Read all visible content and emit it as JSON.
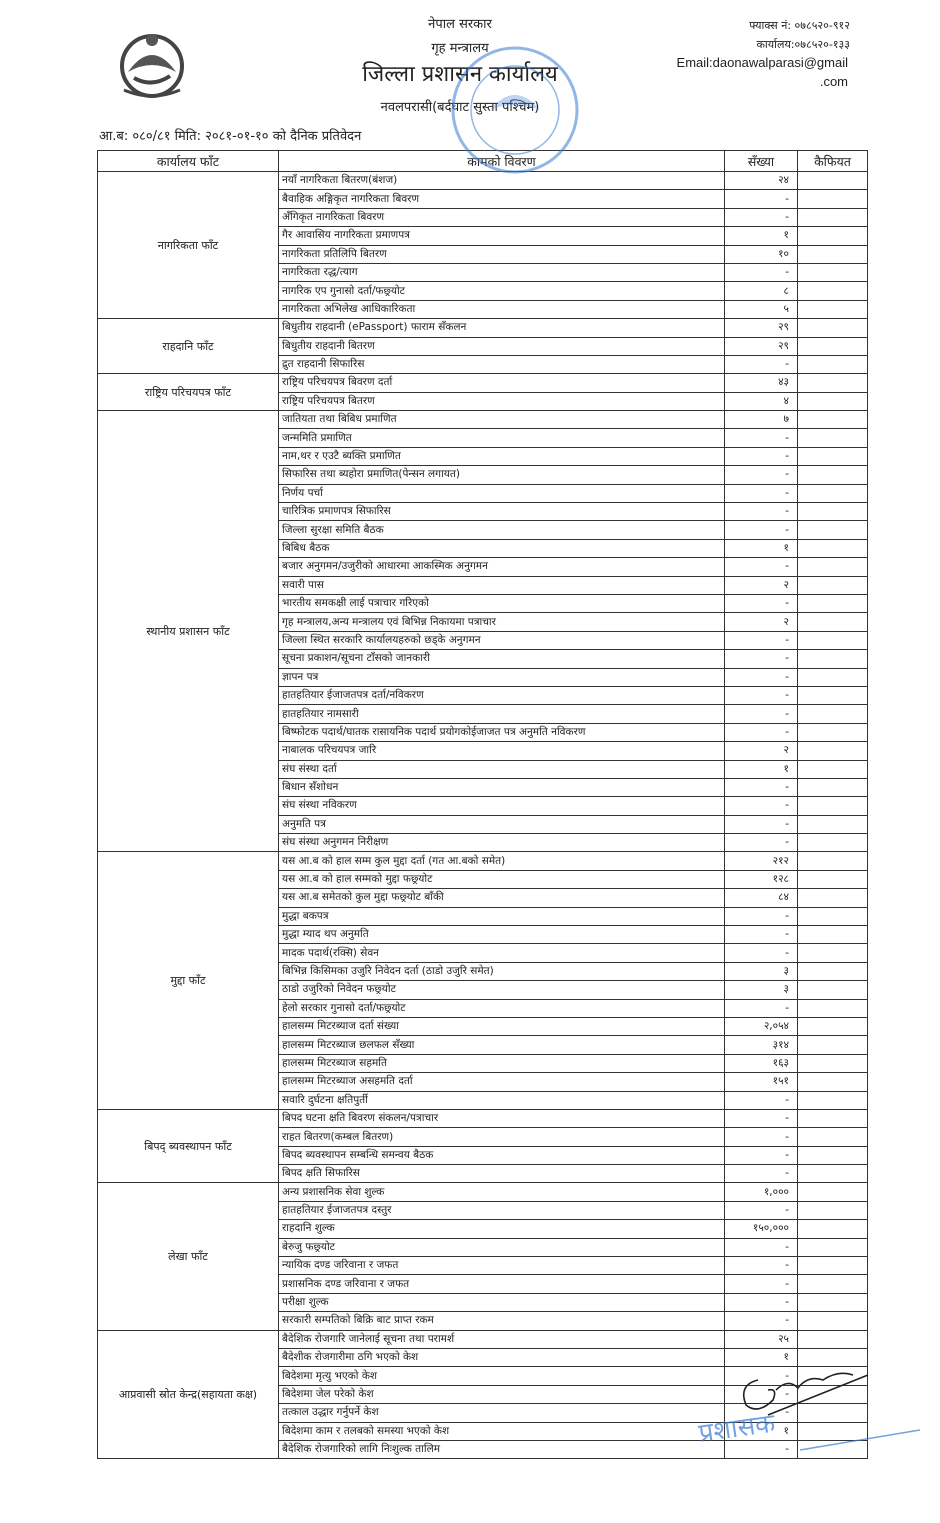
{
  "header": {
    "government": "नेपाल सरकार",
    "ministry": "गृह मन्त्रालय",
    "office": "जिल्ला प्रशासन कार्यालय",
    "district": "नवलपरासी(बर्दघाट सुस्ता पश्चिम)",
    "fax": "फ्याक्स नं: ०७८५२०-९१२",
    "phone": "कार्यालय:०७८५२०-१३३",
    "email_line1": "Email:daonawalparasi@gmail",
    "email_line2": ".com",
    "report_title": "आ.ब: ०८०/८१ मिति: २०८१-०१-१० को दैनिक प्रतिवेदन"
  },
  "table": {
    "columns": [
      "कार्यालय फाँट",
      "कामको विवरण",
      "सँख्या",
      "कैफियत"
    ],
    "sections": [
      {
        "name": "नागरिकता फाँट",
        "rows": [
          [
            "नयाँ नागरिकता बितरण(बंशज)",
            "२४"
          ],
          [
            "बैवाहिक अङ्गिकृत नागरिकता बिवरण",
            "-"
          ],
          [
            "अँगिकृत नागरिकता बिवरण",
            "-"
          ],
          [
            "गैर आवासिय नागरिकता प्रमाणपत्र",
            "१"
          ],
          [
            "नागरिकता प्रतिलिपि बितरण",
            "१०"
          ],
          [
            "नागरिकता रद्ध/त्याग",
            "-"
          ],
          [
            "नागरिक एप गुनासो दर्ता/फछ्र्योट",
            "८"
          ],
          [
            "नागरिकता अभिलेख आधिकारिकता",
            "५"
          ]
        ]
      },
      {
        "name": "राहदानि फाँट",
        "rows": [
          [
            "बिधुतीय राहदानी (ePassport) फाराम सँकलन",
            "२९"
          ],
          [
            "बिधुतीय राहदानी बितरण",
            "२९"
          ],
          [
            "द्रुत राहदानी सिफारिस",
            "-"
          ]
        ]
      },
      {
        "name": "राष्ट्रिय परिचयपत्र फाँट",
        "rows": [
          [
            "राष्ट्रिय परिचयपत्र बिवरण दर्ता",
            "४३"
          ],
          [
            "राष्ट्रिय परिचयपत्र बितरण",
            "४"
          ]
        ]
      },
      {
        "name": "स्थानीय प्रशासन फाँट",
        "rows": [
          [
            "जातियता तथा बिबिध प्रमाणित",
            "७"
          ],
          [
            "जन्ममिति प्रमाणित",
            "-"
          ],
          [
            "नाम,थर र एउटै ब्यक्ति प्रमाणित",
            "-"
          ],
          [
            "सिफारिस तथा ब्यहोरा प्रमाणित(पेन्सन लगायत)",
            "-"
          ],
          [
            "निर्णय पर्चा",
            "-"
          ],
          [
            "चारित्रिक प्रमाणपत्र सिफारिस",
            "-"
          ],
          [
            "जिल्ला सुरक्षा समिति बैठक",
            "-"
          ],
          [
            "बिबिध बैठक",
            "१"
          ],
          [
            "बजार अनुगमन/उजुरीको आधारमा आकस्मिक अनुगमन",
            "-"
          ],
          [
            "सवारी पास",
            "२"
          ],
          [
            "भारतीय समकक्षी लाई पत्राचार गरिएको",
            "-"
          ],
          [
            "गृह मन्त्रालय,अन्य मन्त्रालय एवं बिभिन्न निकायमा पत्राचार",
            "२"
          ],
          [
            "जिल्ला स्थित सरकारि कार्यालयहरुको छड्के अनुगमन",
            "-"
          ],
          [
            "सूचना प्रकाशन/सूचना टाँसको जानकारी",
            "-"
          ],
          [
            "ज्ञापन पत्र",
            "-"
          ],
          [
            "हातहतियार ईजाजतपत्र दर्ता/नविकरण",
            "-"
          ],
          [
            "हातहतियार नामसारी",
            "-"
          ],
          [
            "बिष्फोटक पदार्थ/घातक रासायनिक पदार्थ प्रयोगकोईजाजत पत्र अनुमति नविकरण",
            "-"
          ],
          [
            "नाबालक परिचयपत्र जारि",
            "२"
          ],
          [
            "संघ संस्था दर्ता",
            "१"
          ],
          [
            "बिधान सँशोधन",
            "-"
          ],
          [
            "संघ संस्था नविकरण",
            "-"
          ],
          [
            "अनुमति पत्र",
            "-"
          ],
          [
            "संघ संस्था अनुगमन निरीक्षण",
            "-"
          ]
        ]
      },
      {
        "name": "मुद्दा फाँट",
        "rows": [
          [
            "यस आ.ब को हाल सम्म कुल मुद्दा दर्ता (गत आ.बको समेत)",
            "२१२"
          ],
          [
            "यस आ.ब को हाल सम्मको मुद्दा फछ्र्योट",
            "१२८"
          ],
          [
            "यस आ.ब समेतको कुल मुद्दा फछ्र्योट बाँकी",
            "८४"
          ],
          [
            "मुद्धा बकपत्र",
            "-"
          ],
          [
            "मुद्धा म्याद थप अनुमति",
            "-"
          ],
          [
            "मादक पदार्थ(रक्सि) सेवन",
            "-"
          ],
          [
            "बिभिन्न किसिमका उजुरि निवेदन दर्ता (ठाडो उजुरि समेत)",
            "३"
          ],
          [
            "ठाडो उजुरिको निवेदन फछ्र्योट",
            "३"
          ],
          [
            "हेलो सरकार गुनासो दर्ता/फछ्र्योट",
            "-"
          ],
          [
            "हालसम्म मिटरब्याज दर्ता संख्या",
            "२,०५४"
          ],
          [
            "हालसम्म मिटरब्याज छलफल सँख्या",
            "३१४"
          ],
          [
            "हालसम्म मिटरब्याज सहमति",
            "१६३"
          ],
          [
            "हालसम्म मिटरब्याज असहमति दर्ता",
            "१५१"
          ],
          [
            "सवारि दुर्घटना क्षतिपुर्ती",
            "-"
          ]
        ]
      },
      {
        "name": "बिपद् ब्यवस्थापन फाँट",
        "rows": [
          [
            "बिपद घटना क्षति बिवरण संकलन/पत्राचार",
            "-"
          ],
          [
            "राहत बितरण(कम्बल बितरण)",
            "-"
          ],
          [
            "बिपद ब्यवस्थापन सम्बन्धि समन्वय बैठक",
            "-"
          ],
          [
            "बिपद क्षति सिफारिस",
            "-"
          ]
        ]
      },
      {
        "name": "लेखा फाँट",
        "rows": [
          [
            "अन्य प्रशासनिक सेवा शुल्क",
            "१,०००"
          ],
          [
            "हातहतियार ईजाजतपत्र दस्तुर",
            "-"
          ],
          [
            "राहदानि शुल्क",
            "१५०,०००"
          ],
          [
            "बेरुजु फछ्र्योट",
            "-"
          ],
          [
            "न्यायिक दण्ड जरिवाना र जफत",
            "-"
          ],
          [
            "प्रशासनिक दण्ड जरिवाना र जफत",
            "-"
          ],
          [
            "परीक्षा शुल्क",
            "-"
          ],
          [
            "सरकारी सम्पतिको बिक्रि बाट प्राप्त रकम",
            "-"
          ]
        ]
      },
      {
        "name": "आप्रवासी स्रोत केन्द्र(सहायता कक्ष)",
        "rows": [
          [
            "बैदेशिक रोजगारि जानेलाई सूचना तथा परामर्श",
            "२५"
          ],
          [
            "बैदेशीक रोजगारीमा ठगि भएको केश",
            "१"
          ],
          [
            "बिदेशमा मृत्यु भएको केश",
            "-"
          ],
          [
            "बिदेशमा जेल परेको केश",
            "-"
          ],
          [
            "तत्काल उद्धार गर्नुपर्ने केश",
            "-"
          ],
          [
            "बिदेशमा काम र तलबको समस्या भएको केश",
            "१"
          ],
          [
            "बैदेशिक रोजगारिको लागि निःशुल्क तालिम",
            "-"
          ]
        ]
      }
    ]
  },
  "stamp_text": {
    "top": "नेपाल सरकार",
    "middle": "जिल्ला प्रशासन कार्यालय",
    "bottom": "नवलपरासी (बर्दघाट सुस्ता)",
    "footer": "प्रशासक"
  },
  "colors": {
    "stamp": "#3a7bd5",
    "ink": "#222222"
  }
}
